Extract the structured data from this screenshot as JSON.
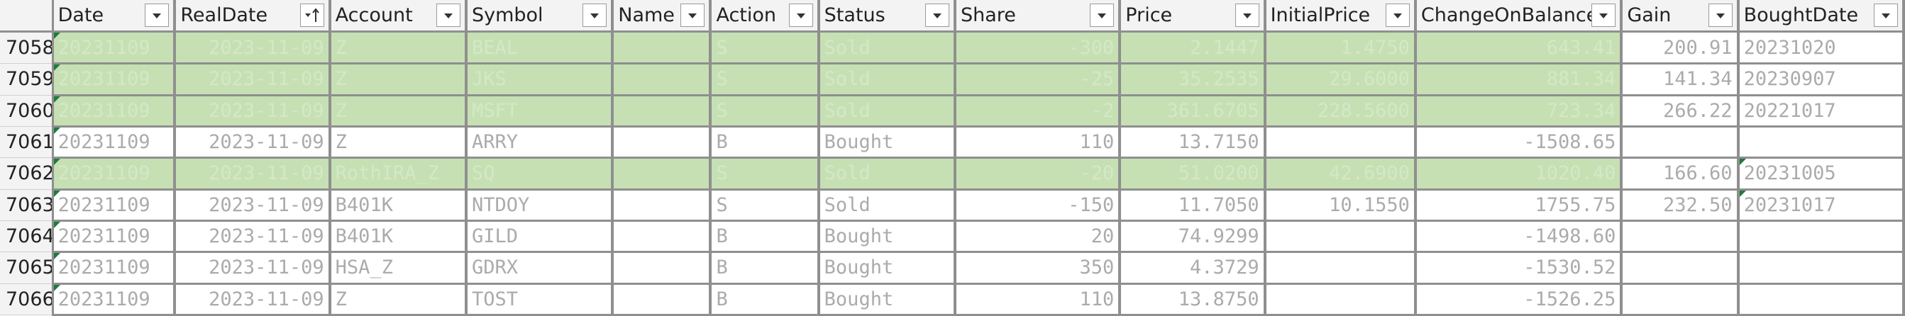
{
  "colors": {
    "highlight_row": "#c6e0b4",
    "header_bg": "#f3f3f3",
    "grid_line": "#8f8f8f",
    "error_marker": "#1e7b3f"
  },
  "columns": [
    "Date",
    "RealDate",
    "Account",
    "Symbol",
    "Name",
    "Action",
    "Status",
    "Share",
    "Price",
    "InitialPrice",
    "ChangeOnBalance",
    "Gain",
    "BoughtDate"
  ],
  "sort_column": "RealDate",
  "rows": [
    {
      "num": "7058",
      "hl": true,
      "mark": [
        "Date"
      ],
      "plain": [
        "Gain",
        "BoughtDate"
      ],
      "cells": {
        "Date": "20231109",
        "RealDate": "2023-11-09",
        "Account": "Z",
        "Symbol": "BEAL",
        "Name": "",
        "Action": "S",
        "Status": "Sold",
        "Share": "-300",
        "Price": "2.1447",
        "InitialPrice": "1.4750",
        "ChangeOnBalance": "643.41",
        "Gain": "200.91",
        "BoughtDate": "20231020"
      }
    },
    {
      "num": "7059",
      "hl": true,
      "mark": [
        "Date"
      ],
      "plain": [
        "Gain",
        "BoughtDate"
      ],
      "cells": {
        "Date": "20231109",
        "RealDate": "2023-11-09",
        "Account": "Z",
        "Symbol": "JKS",
        "Name": "",
        "Action": "S",
        "Status": "Sold",
        "Share": "-25",
        "Price": "35.2535",
        "InitialPrice": "29.6000",
        "ChangeOnBalance": "881.34",
        "Gain": "141.34",
        "BoughtDate": "20230907"
      }
    },
    {
      "num": "7060",
      "hl": true,
      "mark": [
        "Date"
      ],
      "plain": [
        "Gain",
        "BoughtDate"
      ],
      "cells": {
        "Date": "20231109",
        "RealDate": "2023-11-09",
        "Account": "Z",
        "Symbol": "MSFT",
        "Name": "",
        "Action": "S",
        "Status": "Sold",
        "Share": "-2",
        "Price": "361.6705",
        "InitialPrice": "228.5600",
        "ChangeOnBalance": "723.34",
        "Gain": "266.22",
        "BoughtDate": "20221017"
      }
    },
    {
      "num": "7061",
      "hl": false,
      "mark": [
        "Date"
      ],
      "plain": [],
      "cells": {
        "Date": "20231109",
        "RealDate": "2023-11-09",
        "Account": "Z",
        "Symbol": "ARRY",
        "Name": "",
        "Action": "B",
        "Status": "Bought",
        "Share": "110",
        "Price": "13.7150",
        "InitialPrice": "",
        "ChangeOnBalance": "-1508.65",
        "Gain": "",
        "BoughtDate": ""
      }
    },
    {
      "num": "7062",
      "hl": true,
      "mark": [
        "Date",
        "BoughtDate"
      ],
      "plain": [
        "Gain",
        "BoughtDate"
      ],
      "cells": {
        "Date": "20231109",
        "RealDate": "2023-11-09",
        "Account": "RothIRA_Z",
        "Symbol": "SQ",
        "Name": "",
        "Action": "S",
        "Status": "Sold",
        "Share": "-20",
        "Price": "51.0200",
        "InitialPrice": "42.6900",
        "ChangeOnBalance": "1020.40",
        "Gain": "166.60",
        "BoughtDate": "20231005"
      }
    },
    {
      "num": "7063",
      "hl": false,
      "mark": [
        "Date",
        "BoughtDate"
      ],
      "plain": [],
      "cells": {
        "Date": "20231109",
        "RealDate": "2023-11-09",
        "Account": "B401K",
        "Symbol": "NTDOY",
        "Name": "",
        "Action": "S",
        "Status": "Sold",
        "Share": "-150",
        "Price": "11.7050",
        "InitialPrice": "10.1550",
        "ChangeOnBalance": "1755.75",
        "Gain": "232.50",
        "BoughtDate": "20231017"
      }
    },
    {
      "num": "7064",
      "hl": false,
      "mark": [
        "Date"
      ],
      "plain": [],
      "cells": {
        "Date": "20231109",
        "RealDate": "2023-11-09",
        "Account": "B401K",
        "Symbol": "GILD",
        "Name": "",
        "Action": "B",
        "Status": "Bought",
        "Share": "20",
        "Price": "74.9299",
        "InitialPrice": "",
        "ChangeOnBalance": "-1498.60",
        "Gain": "",
        "BoughtDate": ""
      }
    },
    {
      "num": "7065",
      "hl": false,
      "mark": [
        "Date"
      ],
      "plain": [],
      "cells": {
        "Date": "20231109",
        "RealDate": "2023-11-09",
        "Account": "HSA_Z",
        "Symbol": "GDRX",
        "Name": "",
        "Action": "B",
        "Status": "Bought",
        "Share": "350",
        "Price": "4.3729",
        "InitialPrice": "",
        "ChangeOnBalance": "-1530.52",
        "Gain": "",
        "BoughtDate": ""
      }
    },
    {
      "num": "7066",
      "hl": false,
      "mark": [
        "Date"
      ],
      "plain": [],
      "cells": {
        "Date": "20231109",
        "RealDate": "2023-11-09",
        "Account": "Z",
        "Symbol": "TOST",
        "Name": "",
        "Action": "B",
        "Status": "Bought",
        "Share": "110",
        "Price": "13.8750",
        "InitialPrice": "",
        "ChangeOnBalance": "-1526.25",
        "Gain": "",
        "BoughtDate": ""
      }
    }
  ]
}
